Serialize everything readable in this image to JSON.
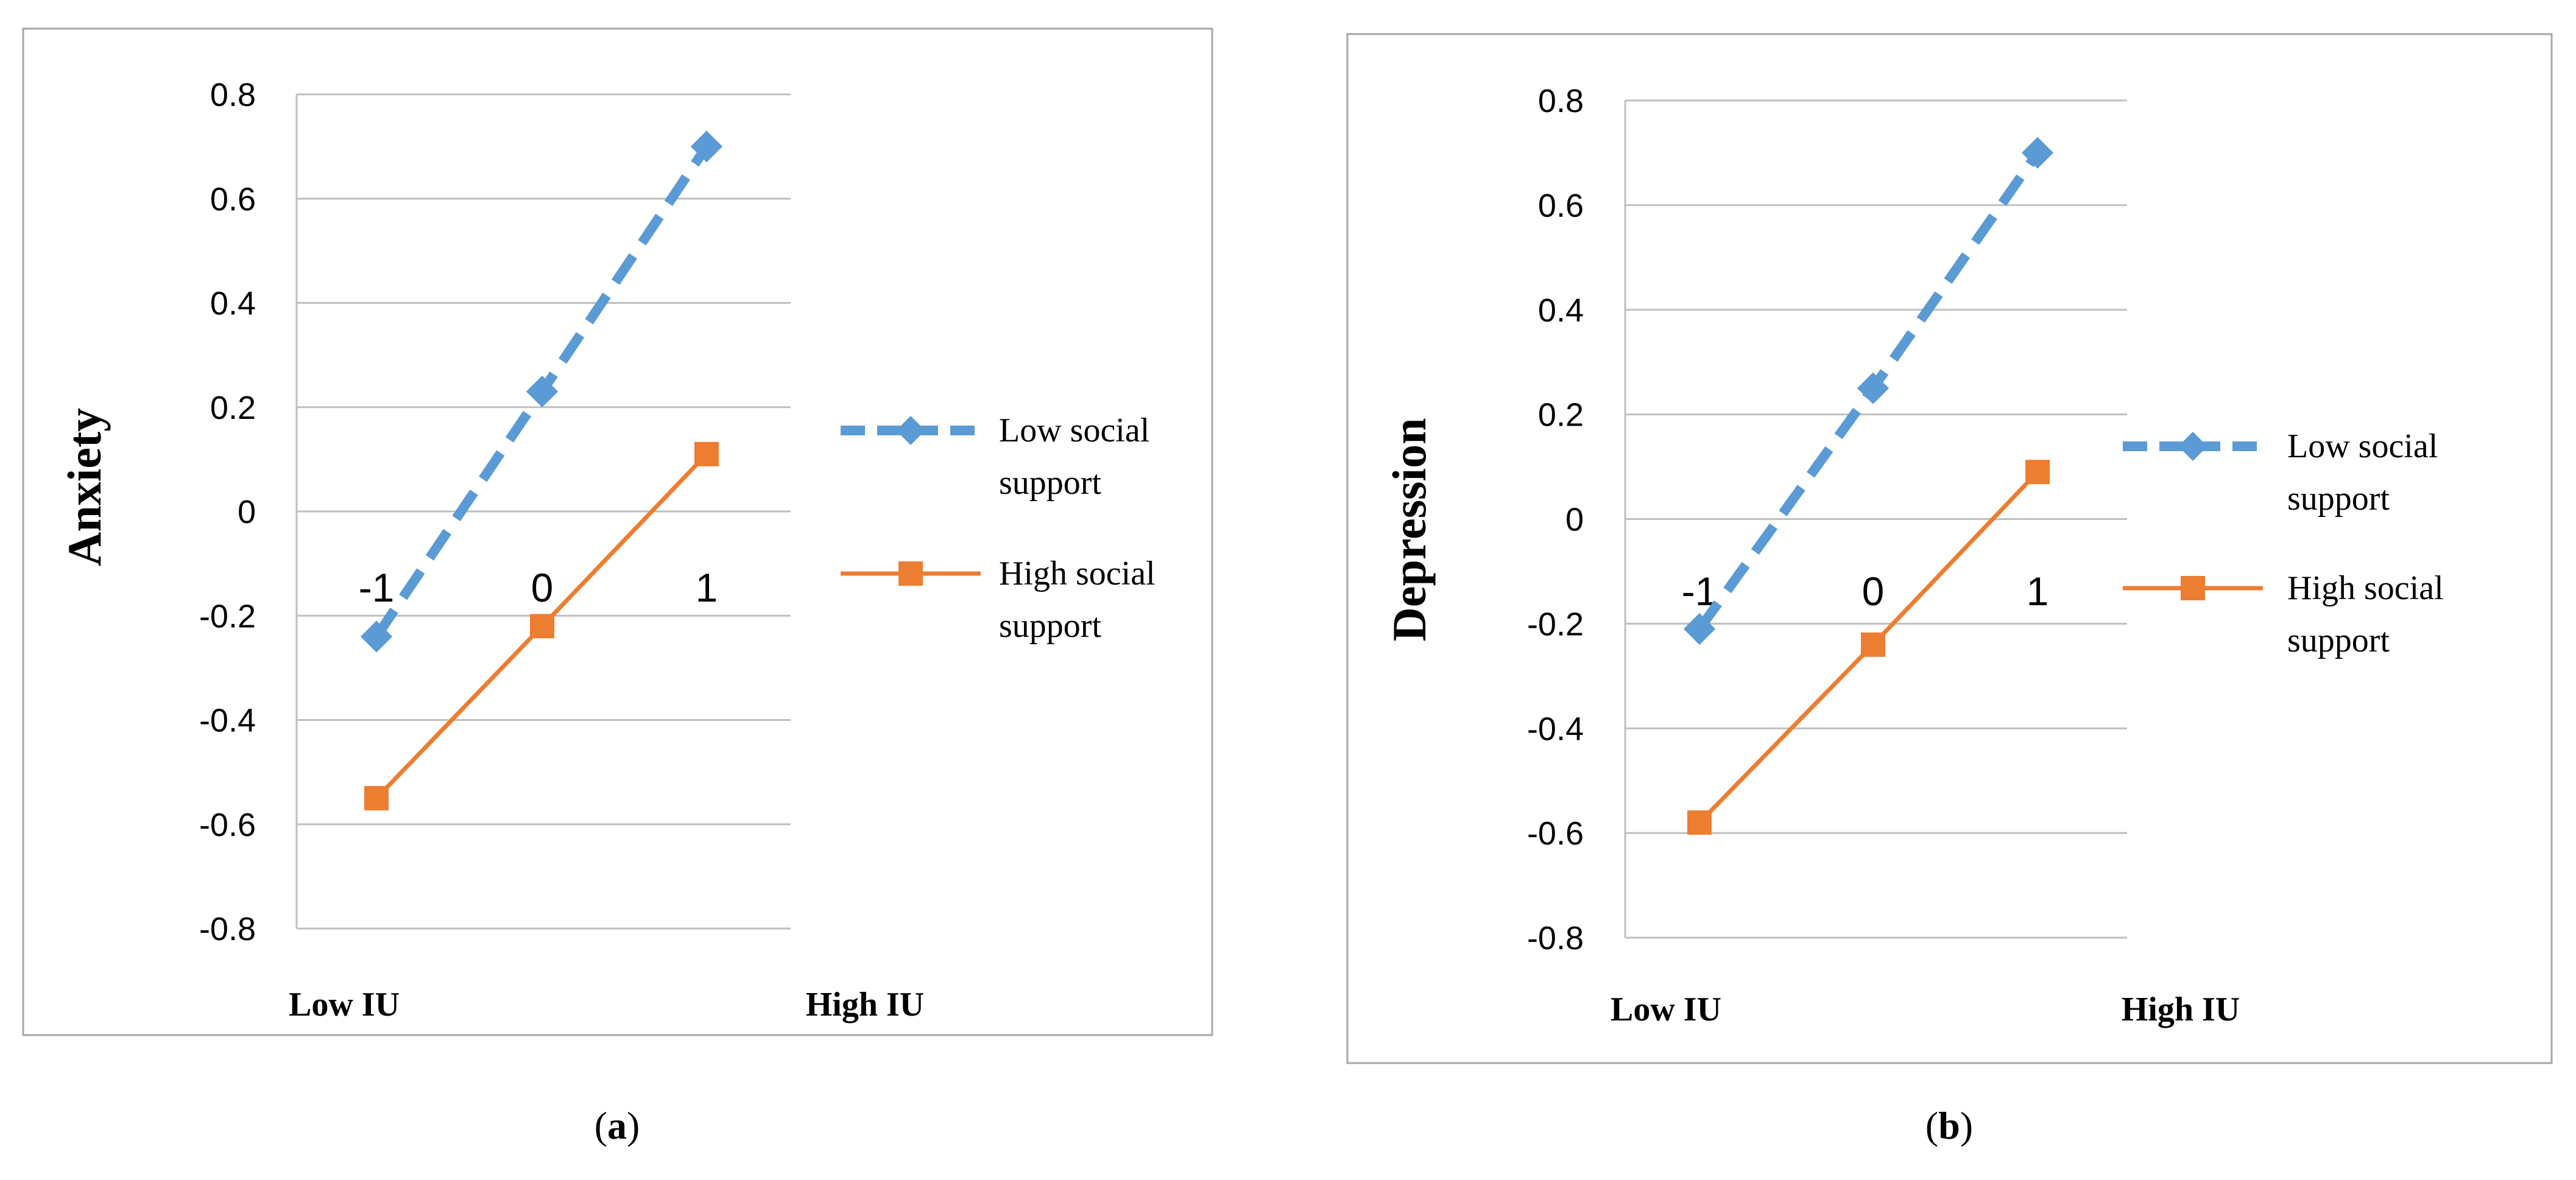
{
  "chart_data": [
    {
      "id": "a",
      "type": "line",
      "caption": "a",
      "ylabel": "Anxiety",
      "x_low_label": "Low IU",
      "x_high_label": "High IU",
      "categories": [
        "-1",
        "0",
        "1"
      ],
      "ylim": [
        -0.8,
        0.8
      ],
      "yticks": [
        "0.8",
        "0.6",
        "0.4",
        "0.2",
        "0",
        "-0.2",
        "-0.4",
        "-0.6",
        "-0.8"
      ],
      "grid": true,
      "legend_position": "right",
      "series": [
        {
          "name": "Low social support",
          "legend_lines": [
            "Low social",
            "support"
          ],
          "values": [
            -0.24,
            0.23,
            0.7
          ],
          "color": "#5B9BD5",
          "style": "dashed",
          "marker": "diamond"
        },
        {
          "name": "High social support",
          "legend_lines": [
            "High social",
            "support"
          ],
          "values": [
            -0.55,
            -0.22,
            0.11
          ],
          "color": "#ED7D31",
          "style": "solid",
          "marker": "square"
        }
      ]
    },
    {
      "id": "b",
      "type": "line",
      "caption": "b",
      "ylabel": "Depression",
      "x_low_label": "Low IU",
      "x_high_label": "High IU",
      "categories": [
        "-1",
        "0",
        "1"
      ],
      "ylim": [
        -0.8,
        0.8
      ],
      "yticks": [
        "0.8",
        "0.6",
        "0.4",
        "0.2",
        "0",
        "-0.2",
        "-0.4",
        "-0.6",
        "-0.8"
      ],
      "grid": true,
      "legend_position": "right",
      "series": [
        {
          "name": "Low social support",
          "legend_lines": [
            "Low social",
            "support"
          ],
          "values": [
            -0.21,
            0.25,
            0.7
          ],
          "color": "#5B9BD5",
          "style": "dashed",
          "marker": "diamond"
        },
        {
          "name": "High social support",
          "legend_lines": [
            "High social",
            "support"
          ],
          "values": [
            -0.58,
            -0.24,
            0.09
          ],
          "color": "#ED7D31",
          "style": "solid",
          "marker": "square"
        }
      ]
    }
  ]
}
